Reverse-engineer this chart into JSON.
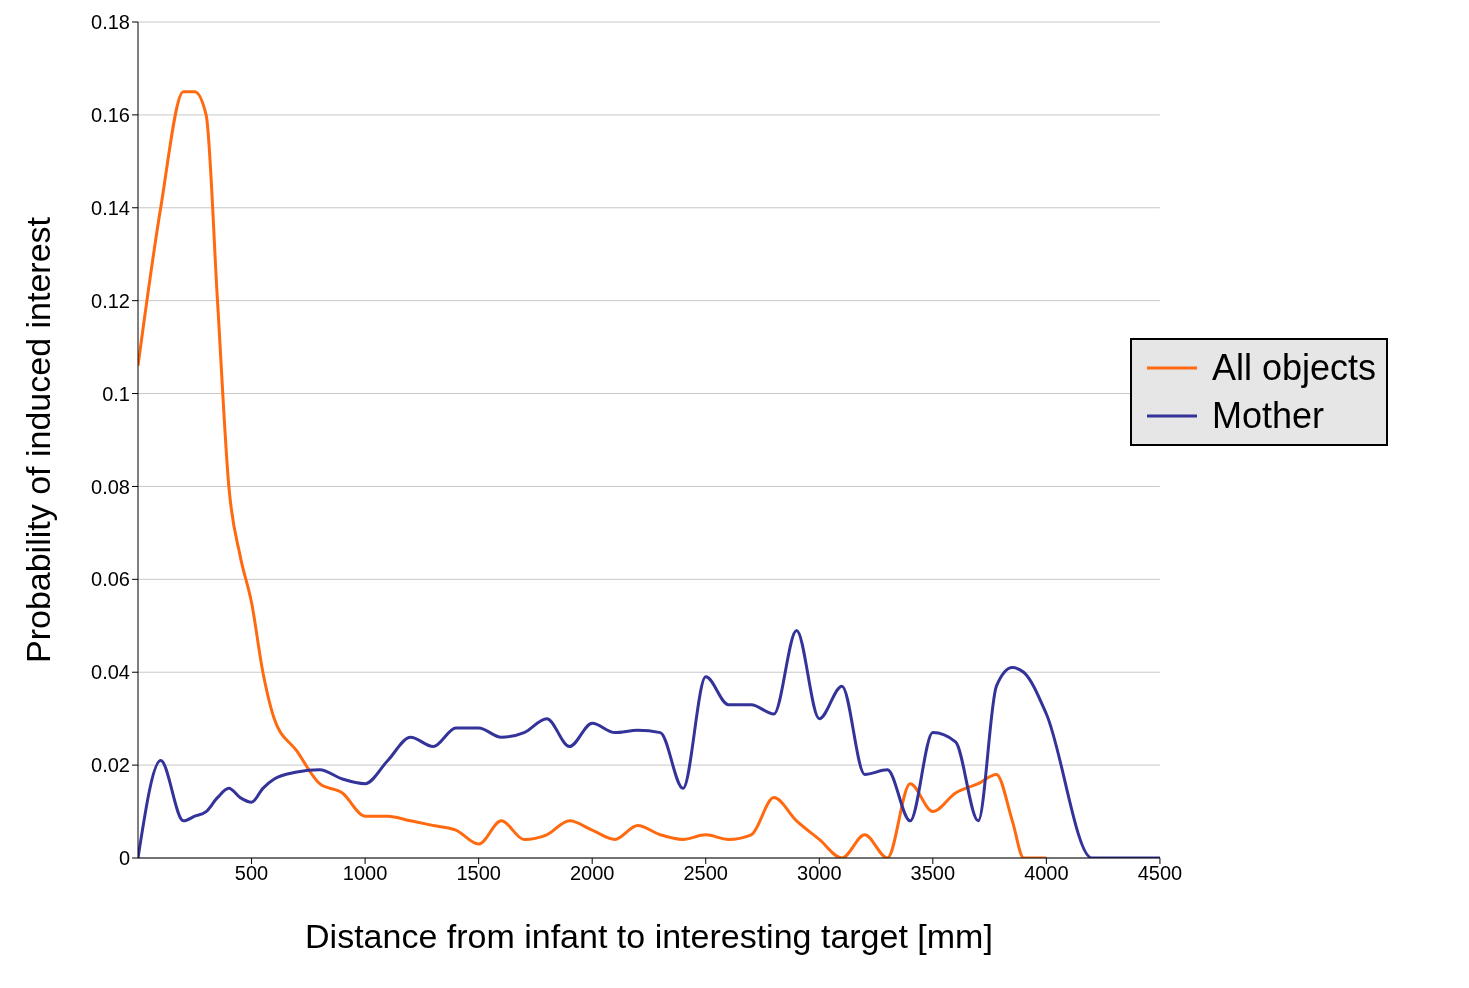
{
  "chart_data": {
    "type": "line",
    "xlabel": "Distance from infant to interesting target [mm]",
    "ylabel": "Probability of induced interest",
    "x": [
      0,
      100,
      200,
      250,
      300,
      350,
      400,
      450,
      500,
      550,
      600,
      700,
      800,
      900,
      1000,
      1100,
      1200,
      1300,
      1400,
      1500,
      1600,
      1700,
      1800,
      1900,
      2000,
      2100,
      2200,
      2300,
      2400,
      2500,
      2600,
      2700,
      2800,
      2900,
      3000,
      3100,
      3200,
      3300,
      3400,
      3500,
      3600,
      3700,
      3780,
      3850,
      3900,
      4000,
      4200,
      4300,
      4500
    ],
    "series": [
      {
        "name": "All objects",
        "color": "#ff6a10",
        "values": [
          0.106,
          0.14,
          0.165,
          0.165,
          0.16,
          0.12,
          0.08,
          0.065,
          0.055,
          0.04,
          0.03,
          0.023,
          0.016,
          0.014,
          0.009,
          0.009,
          0.008,
          0.007,
          0.006,
          0.003,
          0.008,
          0.004,
          0.005,
          0.008,
          0.006,
          0.004,
          0.007,
          0.005,
          0.004,
          0.005,
          0.004,
          0.005,
          0.013,
          0.008,
          0.004,
          0,
          0.005,
          0,
          0.016,
          0.01,
          0.014,
          0.016,
          0.018,
          0.008,
          0,
          0,
          null,
          null,
          null
        ]
      },
      {
        "name": "Mother",
        "color": "#33339a",
        "values": [
          0,
          0.021,
          0.008,
          0.009,
          0.01,
          0.013,
          0.015,
          0.013,
          0.012,
          0.015,
          0.017,
          0.0185,
          0.019,
          0.017,
          0.016,
          0.021,
          0.026,
          0.024,
          0.028,
          0.028,
          0.026,
          0.027,
          0.03,
          0.024,
          0.029,
          0.027,
          0.0275,
          0.027,
          0.015,
          0.039,
          0.033,
          0.033,
          0.031,
          0.049,
          0.03,
          0.037,
          0.018,
          0.019,
          0.008,
          0.027,
          0.025,
          0.008,
          0.037,
          0.041,
          0.04,
          0.031,
          0,
          0,
          0
        ]
      }
    ],
    "xlim": [
      0,
      4500
    ],
    "xticks": [
      500,
      1000,
      1500,
      2000,
      2500,
      3000,
      3500,
      4000,
      4500
    ],
    "ylim": [
      0,
      0.18
    ],
    "yticks": [
      0,
      0.02,
      0.04,
      0.06,
      0.08,
      0.1,
      0.12,
      0.14,
      0.16,
      0.18
    ],
    "grid": "y",
    "legend": "right",
    "marker": "none",
    "line_style": "solid"
  }
}
